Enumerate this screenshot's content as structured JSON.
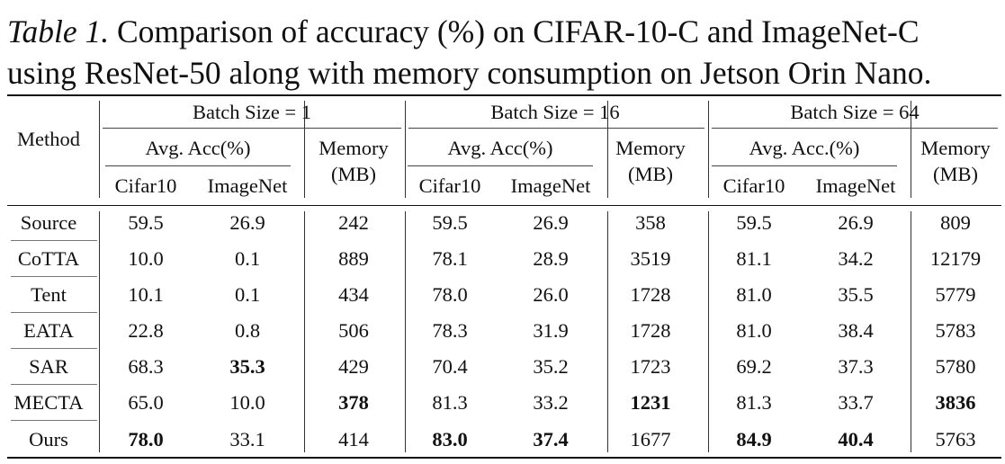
{
  "caption": {
    "label": "Table 1.",
    "line1": " Comparison of accuracy (%) on CIFAR-10-C and ImageNet-C",
    "line2": "using ResNet-50 along with memory consumption on Jetson Orin Nano."
  },
  "header": {
    "method": "Method",
    "groups": [
      "Batch Size = 1",
      "Batch Size = 16",
      "Batch Size = 64"
    ],
    "acc": [
      "Avg. Acc(%)",
      "Avg. Acc(%)",
      "Avg. Acc.(%)"
    ],
    "memory_line1": "Memory",
    "memory_line2": "(MB)",
    "cifar": "Cifar10",
    "imagenet": "ImageNet"
  },
  "rows": [
    {
      "method": "Source",
      "values": [
        "59.5",
        "26.9",
        "242",
        "59.5",
        "26.9",
        "358",
        "59.5",
        "26.9",
        "809"
      ],
      "bold": []
    },
    {
      "method": "CoTTA",
      "values": [
        "10.0",
        "0.1",
        "889",
        "78.1",
        "28.9",
        "3519",
        "81.1",
        "34.2",
        "12179"
      ],
      "bold": []
    },
    {
      "method": "Tent",
      "values": [
        "10.1",
        "0.1",
        "434",
        "78.0",
        "26.0",
        "1728",
        "81.0",
        "35.5",
        "5779"
      ],
      "bold": []
    },
    {
      "method": "EATA",
      "values": [
        "22.8",
        "0.8",
        "506",
        "78.3",
        "31.9",
        "1728",
        "81.0",
        "38.4",
        "5783"
      ],
      "bold": []
    },
    {
      "method": "SAR",
      "values": [
        "68.3",
        "35.3",
        "429",
        "70.4",
        "35.2",
        "1723",
        "69.2",
        "37.3",
        "5780"
      ],
      "bold": [
        1
      ]
    },
    {
      "method": "MECTA",
      "values": [
        "65.0",
        "10.0",
        "378",
        "81.3",
        "33.2",
        "1231",
        "81.3",
        "33.7",
        "3836"
      ],
      "bold": [
        2,
        5,
        8
      ]
    },
    {
      "method": "Ours",
      "values": [
        "78.0",
        "33.1",
        "414",
        "83.0",
        "37.4",
        "1677",
        "84.9",
        "40.4",
        "5763"
      ],
      "bold": [
        0,
        3,
        4,
        6,
        7
      ]
    }
  ]
}
